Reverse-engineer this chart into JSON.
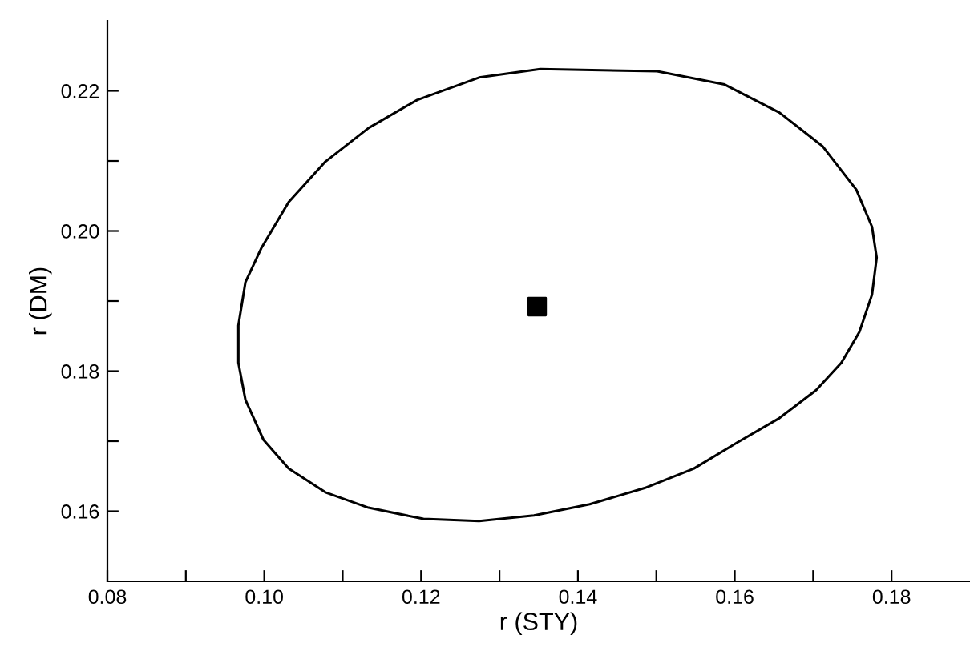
{
  "chart_data": {
    "type": "scatter",
    "xlabel": "r (STY)",
    "ylabel": "r (DM)",
    "series": [
      {
        "color": "#000000",
        "marker": "square",
        "x": [
          0.1348
        ],
        "values": [
          0.1892
        ]
      }
    ],
    "xlim": [
      0.08,
      0.19
    ],
    "ylim": [
      0.15,
      0.23
    ],
    "xticks": [
      0.08,
      {
        "value": 0.09,
        "label": null
      },
      {
        "value": 0.1,
        "label": "0.10"
      },
      {
        "value": 0.11,
        "label": null
      },
      0.12,
      {
        "value": 0.13,
        "label": null
      },
      0.14,
      {
        "value": 0.15,
        "label": null
      },
      0.16,
      {
        "value": 0.17,
        "label": null
      },
      0.18
    ],
    "yticks": [
      0.16,
      {
        "value": 0.17,
        "label": null
      },
      0.18,
      {
        "value": 0.19,
        "label": null
      },
      {
        "value": 0.2,
        "label": "0.20"
      },
      {
        "value": 0.21,
        "label": null
      },
      0.22
    ],
    "grid": false,
    "legend": false
  }
}
